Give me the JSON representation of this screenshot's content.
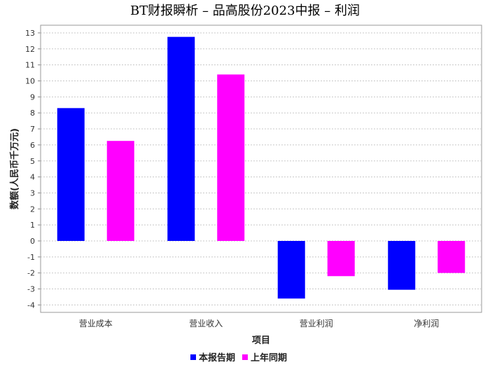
{
  "chart_data": {
    "type": "bar",
    "title": "BT财报瞬析 – 品高股份2023中报 – 利润",
    "xlabel": "项目",
    "ylabel": "数额(人民币千万元)",
    "categories": [
      "营业成本",
      "营业收入",
      "营业利润",
      "净利润"
    ],
    "series": [
      {
        "name": "本报告期",
        "color": "#0000ff",
        "values": [
          8.3,
          12.75,
          -3.6,
          -3.05
        ]
      },
      {
        "name": "上年同期",
        "color": "#ff00ff",
        "values": [
          6.25,
          10.4,
          -2.2,
          -2.0
        ]
      }
    ],
    "ylim": [
      -4.4,
      13.5
    ],
    "yticks": [
      13,
      12,
      11,
      10,
      9,
      8,
      7,
      6,
      5,
      4,
      3,
      2,
      1,
      0,
      -1,
      -2,
      -3,
      -4
    ],
    "grid": true,
    "legend_position": "bottom"
  }
}
